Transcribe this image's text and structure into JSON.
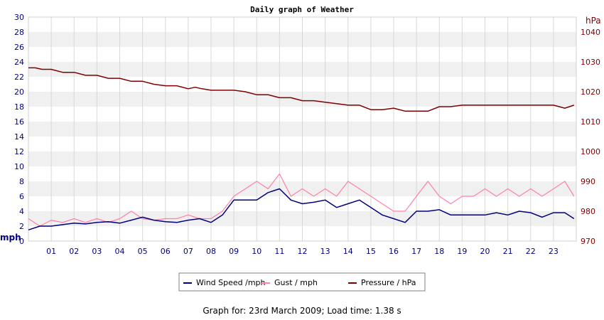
{
  "chart_data": {
    "type": "line",
    "title": "Daily graph of Weather",
    "ylabel_left": "mph",
    "ylabel_right": "hPa",
    "xticks": [
      "01",
      "02",
      "03",
      "04",
      "05",
      "06",
      "07",
      "08",
      "09",
      "10",
      "11",
      "12",
      "13",
      "14",
      "15",
      "16",
      "17",
      "18",
      "19",
      "20",
      "21",
      "22",
      "23"
    ],
    "ylim_left": [
      0,
      30
    ],
    "ylim_right": [
      970,
      1045
    ],
    "yticks_left": [
      0,
      2,
      4,
      6,
      8,
      10,
      12,
      14,
      16,
      18,
      20,
      22,
      24,
      26,
      28,
      30
    ],
    "yticks_right": [
      970,
      980,
      990,
      1000,
      1010,
      1020,
      1030,
      1040
    ],
    "grid": true,
    "legend_position": "bottom",
    "colors": {
      "wind": "#000080",
      "gust": "#ff80a8",
      "pressure": "#800000",
      "left_axis": "#000080",
      "right_axis": "#800000"
    },
    "series": [
      {
        "name": "Wind Speed /mph",
        "x": [
          0,
          0.5,
          1,
          1.5,
          2,
          2.5,
          3,
          3.5,
          4,
          4.5,
          5,
          5.5,
          6,
          6.5,
          7,
          7.5,
          8,
          8.5,
          9,
          9.5,
          10,
          10.5,
          11,
          11.5,
          12,
          12.5,
          13,
          13.5,
          14,
          14.5,
          15,
          15.5,
          16,
          16.5,
          17,
          17.5,
          18,
          18.5,
          19,
          19.5,
          20,
          20.5,
          21,
          21.5,
          22,
          22.5,
          23,
          23.5,
          23.9
        ],
        "values": [
          1.5,
          2,
          2,
          2.2,
          2.4,
          2.3,
          2.5,
          2.6,
          2.4,
          2.8,
          3.2,
          2.8,
          2.6,
          2.5,
          2.8,
          3,
          2.5,
          3.5,
          5.5,
          5.5,
          5.5,
          6.5,
          7,
          5.5,
          5,
          5.2,
          5.5,
          4.5,
          5,
          5.5,
          4.5,
          3.5,
          3,
          2.5,
          4,
          4,
          4.2,
          3.5,
          3.5,
          3.5,
          3.5,
          3.8,
          3.5,
          4,
          3.8,
          3.2,
          3.8,
          3.8,
          3
        ]
      },
      {
        "name": "Gust / mph",
        "x": [
          0,
          0.5,
          1,
          1.5,
          2,
          2.5,
          3,
          3.5,
          4,
          4.5,
          5,
          5.5,
          6,
          6.5,
          7,
          7.5,
          8,
          8.5,
          9,
          9.5,
          10,
          10.5,
          11,
          11.5,
          12,
          12.5,
          13,
          13.5,
          14,
          14.5,
          15,
          15.5,
          16,
          16.5,
          17,
          17.5,
          18,
          18.5,
          19,
          19.5,
          20,
          20.5,
          21,
          21.5,
          22,
          22.5,
          23,
          23.5,
          23.9
        ],
        "values": [
          3,
          2,
          2.8,
          2.5,
          3,
          2.5,
          3,
          2.5,
          3,
          4,
          3,
          2.8,
          3,
          3,
          3.5,
          3,
          3,
          4,
          6,
          7,
          8,
          7,
          9,
          6,
          7,
          6,
          7,
          6,
          8,
          7,
          6,
          5,
          4,
          4,
          6,
          8,
          6,
          5,
          6,
          6,
          7,
          6,
          7,
          6,
          7,
          6,
          7,
          8,
          6
        ]
      },
      {
        "name": "Pressure / hPa",
        "x": [
          0,
          0.3,
          0.6,
          1,
          1.5,
          2,
          2.5,
          3,
          3.5,
          4,
          4.5,
          5,
          5.5,
          6,
          6.5,
          7,
          7.3,
          7.6,
          8,
          8.5,
          9,
          9.5,
          10,
          10.5,
          11,
          11.5,
          12,
          12.5,
          13,
          13.5,
          14,
          14.5,
          15,
          15.5,
          16,
          16.5,
          17,
          17.5,
          18,
          18.5,
          19,
          19.5,
          20,
          20.5,
          21,
          21.5,
          22,
          22.5,
          23,
          23.5,
          23.9
        ],
        "values": [
          1028,
          1028,
          1027.5,
          1027.5,
          1026.5,
          1026.5,
          1025.5,
          1025.5,
          1024.5,
          1024.5,
          1023.5,
          1023.5,
          1022.5,
          1022,
          1022,
          1021,
          1021.5,
          1021,
          1020.5,
          1020.5,
          1020.5,
          1020,
          1019,
          1019,
          1018,
          1018,
          1017,
          1017,
          1016.5,
          1016,
          1015.5,
          1015.5,
          1014,
          1014,
          1014.5,
          1013.5,
          1013.5,
          1013.5,
          1015,
          1015,
          1015.5,
          1015.5,
          1015.5,
          1015.5,
          1015.5,
          1015.5,
          1015.5,
          1015.5,
          1015.5,
          1014.5,
          1015.5
        ]
      }
    ]
  },
  "footer": {
    "text": "Graph for: 23rd March 2009; Load time: 1.38 s"
  }
}
